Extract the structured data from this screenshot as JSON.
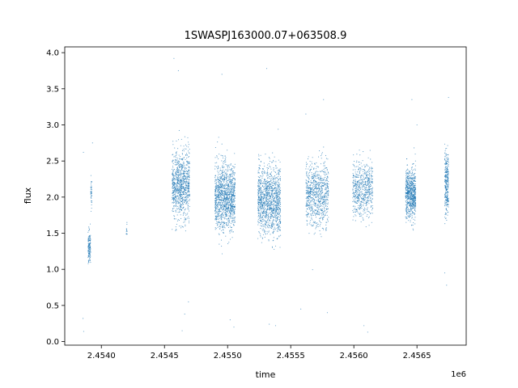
{
  "chart_data": {
    "type": "scatter",
    "title": "1SWASPJ163000.07+063508.9",
    "xlabel": "time",
    "ylabel": "flux",
    "x_offset_label": "1e6",
    "xlim": [
      2453710,
      2456890
    ],
    "ylim": [
      -0.05,
      4.08
    ],
    "x_ticks": [
      {
        "value": 2454000,
        "label": "2.4540"
      },
      {
        "value": 2454500,
        "label": "2.4545"
      },
      {
        "value": 2455000,
        "label": "2.4550"
      },
      {
        "value": 2455500,
        "label": "2.4555"
      },
      {
        "value": 2456000,
        "label": "2.4560"
      },
      {
        "value": 2456500,
        "label": "2.4565"
      }
    ],
    "y_ticks": [
      {
        "value": 0.0,
        "label": "0.0"
      },
      {
        "value": 0.5,
        "label": "0.5"
      },
      {
        "value": 1.0,
        "label": "1.0"
      },
      {
        "value": 1.5,
        "label": "1.5"
      },
      {
        "value": 2.0,
        "label": "2.0"
      },
      {
        "value": 2.5,
        "label": "2.5"
      },
      {
        "value": 3.0,
        "label": "3.0"
      },
      {
        "value": 3.5,
        "label": "3.5"
      },
      {
        "value": 4.0,
        "label": "4.0"
      }
    ],
    "grid": false,
    "marker_color": "#1f77b4",
    "series": [
      {
        "clusters": [
          {
            "x_range": [
              2453895,
              2453915
            ],
            "y_center": 1.3,
            "y_spread": 0.2,
            "n": 140
          },
          {
            "x_range": [
              2453915,
              2453925
            ],
            "y_center": 2.05,
            "y_spread": 0.25,
            "n": 40
          },
          {
            "x_range": [
              2454195,
              2454205
            ],
            "y_center": 1.55,
            "y_spread": 0.1,
            "n": 12
          },
          {
            "x_range": [
              2454560,
              2454700
            ],
            "y_center": 2.15,
            "y_spread": 0.42,
            "n": 900
          },
          {
            "x_range": [
              2454900,
              2455060
            ],
            "y_center": 2.0,
            "y_spread": 0.42,
            "n": 1200
          },
          {
            "x_range": [
              2455240,
              2455420
            ],
            "y_center": 1.95,
            "y_spread": 0.42,
            "n": 1200
          },
          {
            "x_range": [
              2455620,
              2455800
            ],
            "y_center": 2.05,
            "y_spread": 0.4,
            "n": 800
          },
          {
            "x_range": [
              2455990,
              2456150
            ],
            "y_center": 2.1,
            "y_spread": 0.35,
            "n": 600
          },
          {
            "x_range": [
              2456410,
              2456490
            ],
            "y_center": 2.05,
            "y_spread": 0.3,
            "n": 700
          },
          {
            "x_range": [
              2456720,
              2456750
            ],
            "y_center": 2.2,
            "y_spread": 0.4,
            "n": 300
          }
        ],
        "outliers": [
          {
            "x": 2453855,
            "y": 0.32
          },
          {
            "x": 2453860,
            "y": 0.14
          },
          {
            "x": 2453858,
            "y": 2.62
          },
          {
            "x": 2453930,
            "y": 2.75
          },
          {
            "x": 2454575,
            "y": 3.92
          },
          {
            "x": 2454610,
            "y": 3.75
          },
          {
            "x": 2454640,
            "y": 0.15
          },
          {
            "x": 2454660,
            "y": 0.38
          },
          {
            "x": 2454690,
            "y": 0.55
          },
          {
            "x": 2454955,
            "y": 3.7
          },
          {
            "x": 2455050,
            "y": 0.2
          },
          {
            "x": 2455020,
            "y": 0.3
          },
          {
            "x": 2455310,
            "y": 3.78
          },
          {
            "x": 2455330,
            "y": 0.24
          },
          {
            "x": 2455380,
            "y": 0.22
          },
          {
            "x": 2455580,
            "y": 0.45
          },
          {
            "x": 2455620,
            "y": 3.15
          },
          {
            "x": 2455760,
            "y": 3.35
          },
          {
            "x": 2455790,
            "y": 0.4
          },
          {
            "x": 2456110,
            "y": 0.13
          },
          {
            "x": 2456080,
            "y": 0.22
          },
          {
            "x": 2456460,
            "y": 3.35
          },
          {
            "x": 2456500,
            "y": 3.0
          },
          {
            "x": 2456750,
            "y": 3.38
          },
          {
            "x": 2456720,
            "y": 0.95
          },
          {
            "x": 2456735,
            "y": 0.78
          }
        ]
      }
    ]
  }
}
